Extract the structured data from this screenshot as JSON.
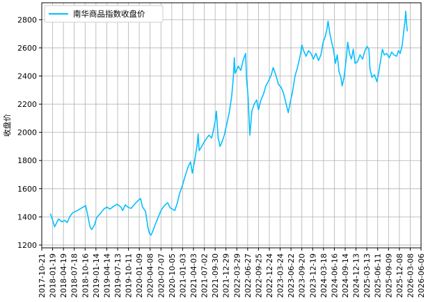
{
  "chart_data": {
    "type": "line",
    "title": "",
    "xlabel": "",
    "ylabel": "收盘价",
    "ylim": [
      1180,
      2920
    ],
    "xlim": [
      "2017-10-21",
      "2026-06-06"
    ],
    "grid": true,
    "legend_position": "top-left",
    "x_ticks": [
      "2017-10-21",
      "2018-01-19",
      "2018-04-19",
      "2018-07-18",
      "2018-10-16",
      "2019-01-14",
      "2019-04-14",
      "2019-07-13",
      "2019-10-11",
      "2020-01-09",
      "2020-04-08",
      "2020-07-07",
      "2020-10-05",
      "2021-01-03",
      "2021-04-03",
      "2021-07-02",
      "2021-09-30",
      "2021-12-29",
      "2022-03-29",
      "2022-06-27",
      "2022-09-25",
      "2022-12-24",
      "2023-03-24",
      "2023-06-22",
      "2023-09-20",
      "2023-12-19",
      "2024-03-18",
      "2024-06-16",
      "2024-09-14",
      "2024-12-13",
      "2025-03-13",
      "2025-06-11",
      "2025-09-09",
      "2025-12-08",
      "2026-03-08",
      "2026-06-06"
    ],
    "y_ticks": [
      1200,
      1400,
      1600,
      1800,
      2000,
      2200,
      2400,
      2600,
      2800
    ],
    "series": [
      {
        "name": "南华商品指数收盘价",
        "color": "#00bfff",
        "points": [
          [
            "2018-01-02",
            1420
          ],
          [
            "2018-01-20",
            1375
          ],
          [
            "2018-02-05",
            1330
          ],
          [
            "2018-02-20",
            1355
          ],
          [
            "2018-03-10",
            1385
          ],
          [
            "2018-04-05",
            1365
          ],
          [
            "2018-05-01",
            1375
          ],
          [
            "2018-05-20",
            1360
          ],
          [
            "2018-06-10",
            1400
          ],
          [
            "2018-07-05",
            1430
          ],
          [
            "2018-08-01",
            1440
          ],
          [
            "2018-09-01",
            1455
          ],
          [
            "2018-10-01",
            1470
          ],
          [
            "2018-10-20",
            1480
          ],
          [
            "2018-11-10",
            1400
          ],
          [
            "2018-11-25",
            1330
          ],
          [
            "2018-12-10",
            1310
          ],
          [
            "2019-01-01",
            1340
          ],
          [
            "2019-01-20",
            1395
          ],
          [
            "2019-02-20",
            1425
          ],
          [
            "2019-03-20",
            1455
          ],
          [
            "2019-04-15",
            1470
          ],
          [
            "2019-05-10",
            1455
          ],
          [
            "2019-06-10",
            1475
          ],
          [
            "2019-07-10",
            1490
          ],
          [
            "2019-08-10",
            1470
          ],
          [
            "2019-08-25",
            1445
          ],
          [
            "2019-09-15",
            1485
          ],
          [
            "2019-10-05",
            1470
          ],
          [
            "2019-11-01",
            1460
          ],
          [
            "2019-12-01",
            1490
          ],
          [
            "2020-01-10",
            1525
          ],
          [
            "2020-01-20",
            1530
          ],
          [
            "2020-02-05",
            1470
          ],
          [
            "2020-03-01",
            1440
          ],
          [
            "2020-03-20",
            1330
          ],
          [
            "2020-04-01",
            1285
          ],
          [
            "2020-04-15",
            1270
          ],
          [
            "2020-05-01",
            1300
          ],
          [
            "2020-05-20",
            1345
          ],
          [
            "2020-06-15",
            1400
          ],
          [
            "2020-07-10",
            1450
          ],
          [
            "2020-08-10",
            1485
          ],
          [
            "2020-09-01",
            1500
          ],
          [
            "2020-09-20",
            1465
          ],
          [
            "2020-10-10",
            1455
          ],
          [
            "2020-10-30",
            1445
          ],
          [
            "2020-11-20",
            1500
          ],
          [
            "2020-12-10",
            1570
          ],
          [
            "2021-01-01",
            1620
          ],
          [
            "2021-01-20",
            1680
          ],
          [
            "2021-02-20",
            1760
          ],
          [
            "2021-03-10",
            1790
          ],
          [
            "2021-03-25",
            1710
          ],
          [
            "2021-04-15",
            1810
          ],
          [
            "2021-05-05",
            1920
          ],
          [
            "2021-05-12",
            1990
          ],
          [
            "2021-05-20",
            1870
          ],
          [
            "2021-06-10",
            1900
          ],
          [
            "2021-07-10",
            1945
          ],
          [
            "2021-08-10",
            1980
          ],
          [
            "2021-09-01",
            1960
          ],
          [
            "2021-09-15",
            2010
          ],
          [
            "2021-10-01",
            2080
          ],
          [
            "2021-10-10",
            2150
          ],
          [
            "2021-10-25",
            1960
          ],
          [
            "2021-11-10",
            1900
          ],
          [
            "2021-11-25",
            1930
          ],
          [
            "2021-12-15",
            1980
          ],
          [
            "2022-01-05",
            2060
          ],
          [
            "2022-01-25",
            2140
          ],
          [
            "2022-02-15",
            2260
          ],
          [
            "2022-03-01",
            2400
          ],
          [
            "2022-03-08",
            2530
          ],
          [
            "2022-03-15",
            2420
          ],
          [
            "2022-04-10",
            2470
          ],
          [
            "2022-05-01",
            2440
          ],
          [
            "2022-05-20",
            2510
          ],
          [
            "2022-06-10",
            2560
          ],
          [
            "2022-06-18",
            2380
          ],
          [
            "2022-07-01",
            2250
          ],
          [
            "2022-07-15",
            1980
          ],
          [
            "2022-08-01",
            2150
          ],
          [
            "2022-08-20",
            2200
          ],
          [
            "2022-09-10",
            2230
          ],
          [
            "2022-09-25",
            2160
          ],
          [
            "2022-10-15",
            2230
          ],
          [
            "2022-11-05",
            2270
          ],
          [
            "2022-11-25",
            2330
          ],
          [
            "2022-12-15",
            2360
          ],
          [
            "2023-01-10",
            2410
          ],
          [
            "2023-01-25",
            2460
          ],
          [
            "2023-02-15",
            2410
          ],
          [
            "2023-03-10",
            2340
          ],
          [
            "2023-04-01",
            2320
          ],
          [
            "2023-04-20",
            2280
          ],
          [
            "2023-05-10",
            2210
          ],
          [
            "2023-05-30",
            2140
          ],
          [
            "2023-06-15",
            2210
          ],
          [
            "2023-07-05",
            2290
          ],
          [
            "2023-07-25",
            2400
          ],
          [
            "2023-08-15",
            2460
          ],
          [
            "2023-09-10",
            2560
          ],
          [
            "2023-09-20",
            2620
          ],
          [
            "2023-10-05",
            2580
          ],
          [
            "2023-10-25",
            2540
          ],
          [
            "2023-11-15",
            2580
          ],
          [
            "2023-12-05",
            2560
          ],
          [
            "2023-12-25",
            2520
          ],
          [
            "2024-01-15",
            2560
          ],
          [
            "2024-02-05",
            2510
          ],
          [
            "2024-02-25",
            2550
          ],
          [
            "2024-03-15",
            2640
          ],
          [
            "2024-04-01",
            2680
          ],
          [
            "2024-04-15",
            2730
          ],
          [
            "2024-04-25",
            2790
          ],
          [
            "2024-05-10",
            2700
          ],
          [
            "2024-05-25",
            2640
          ],
          [
            "2024-06-10",
            2580
          ],
          [
            "2024-06-25",
            2490
          ],
          [
            "2024-07-10",
            2550
          ],
          [
            "2024-07-25",
            2430
          ],
          [
            "2024-08-10",
            2390
          ],
          [
            "2024-08-20",
            2330
          ],
          [
            "2024-09-05",
            2390
          ],
          [
            "2024-09-25",
            2540
          ],
          [
            "2024-10-05",
            2640
          ],
          [
            "2024-10-20",
            2560
          ],
          [
            "2024-11-05",
            2520
          ],
          [
            "2024-11-20",
            2590
          ],
          [
            "2024-12-05",
            2490
          ],
          [
            "2024-12-25",
            2500
          ],
          [
            "2025-01-15",
            2550
          ],
          [
            "2025-02-05",
            2520
          ],
          [
            "2025-02-25",
            2580
          ],
          [
            "2025-03-15",
            2610
          ],
          [
            "2025-03-30",
            2590
          ],
          [
            "2025-04-08",
            2450
          ],
          [
            "2025-04-25",
            2390
          ],
          [
            "2025-05-15",
            2410
          ],
          [
            "2025-06-05",
            2360
          ],
          [
            "2025-06-20",
            2430
          ],
          [
            "2025-07-05",
            2510
          ],
          [
            "2025-07-20",
            2590
          ],
          [
            "2025-08-05",
            2550
          ],
          [
            "2025-08-25",
            2560
          ],
          [
            "2025-09-15",
            2530
          ],
          [
            "2025-10-05",
            2570
          ],
          [
            "2025-10-25",
            2550
          ],
          [
            "2025-11-15",
            2540
          ],
          [
            "2025-12-01",
            2580
          ],
          [
            "2025-12-15",
            2560
          ],
          [
            "2026-01-01",
            2620
          ],
          [
            "2026-01-15",
            2730
          ],
          [
            "2026-01-25",
            2800
          ],
          [
            "2026-01-30",
            2860
          ],
          [
            "2026-02-06",
            2770
          ],
          [
            "2026-02-12",
            2720
          ]
        ]
      }
    ]
  }
}
